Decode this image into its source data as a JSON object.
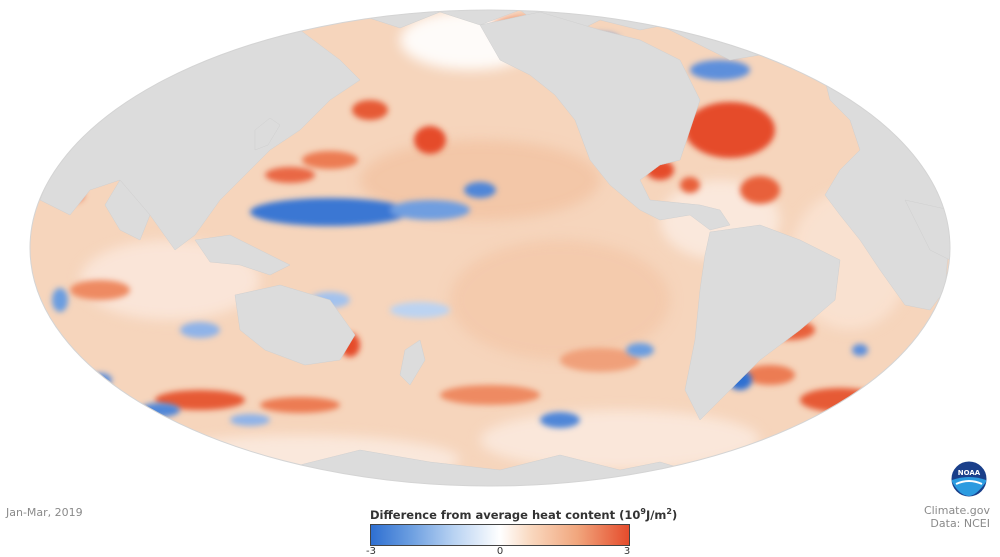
{
  "map": {
    "date": "Jan-Mar, 2019",
    "colors": {
      "land": "#dcdcdc",
      "ocean_base": "#f7dcc6",
      "warm": "#e8472b",
      "cool": "#3a77d3",
      "neutral": "#ffffff"
    }
  },
  "legend": {
    "title_main": "Difference from average heat content (10",
    "title_exp": "9",
    "title_unit": "J/m",
    "title_exp2": "2",
    "title_end": ")",
    "min_label": "-3",
    "mid_label": "0",
    "max_label": "3",
    "min": -3,
    "max": 3
  },
  "credit": {
    "line1": "Climate.gov",
    "line2": "Data: NCEI"
  },
  "logo": {
    "text": "NOAA",
    "icon": "noaa-logo-icon"
  }
}
